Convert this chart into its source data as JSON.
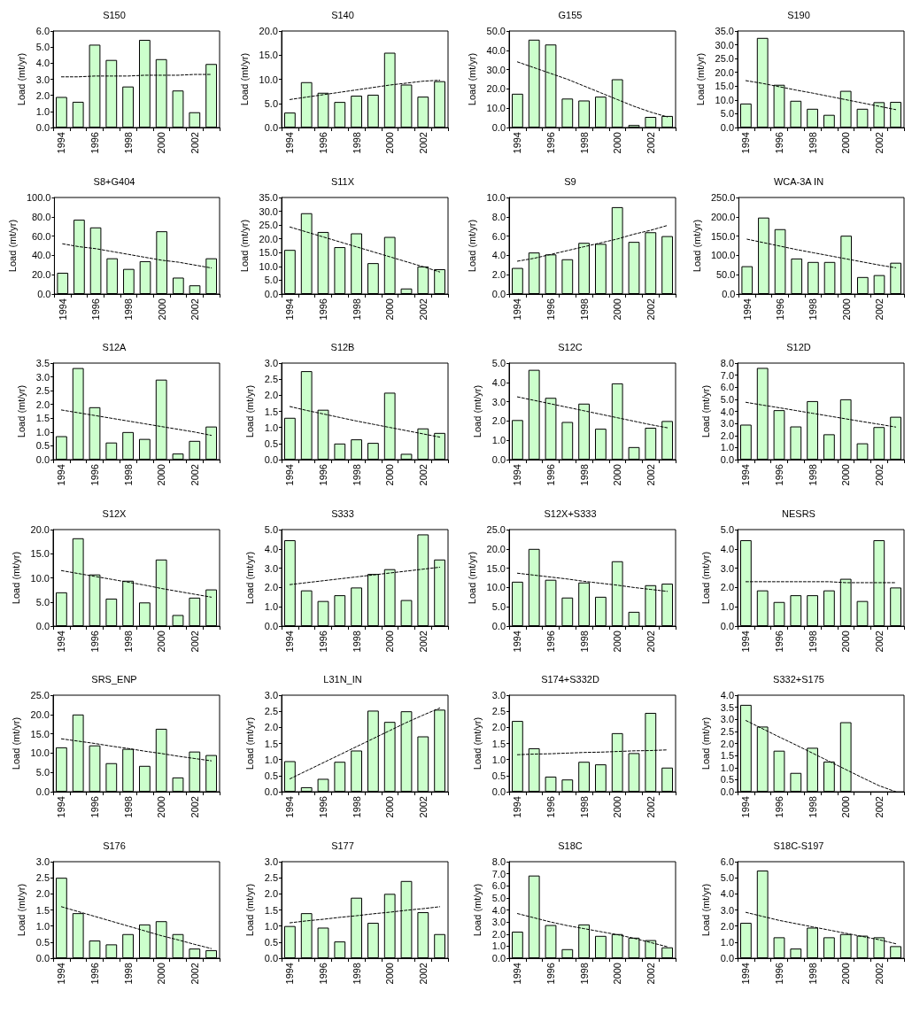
{
  "chart_data": [
    {
      "type": "bar",
      "title": "S150",
      "ylabel": "Load (mt/yr)",
      "categories": [
        "1994",
        null,
        "1996",
        null,
        "1998",
        null,
        "2000",
        null,
        "2002",
        null
      ],
      "ylim": [
        0,
        6
      ],
      "yticks": [
        {
          "value": 0,
          "label": "0.0"
        },
        {
          "value": 1,
          "label": "1.0"
        },
        {
          "value": 2,
          "label": "2.0"
        },
        {
          "value": 3,
          "label": "3.0"
        },
        {
          "value": 4,
          "label": "4.0"
        },
        {
          "value": 5,
          "label": "5.0"
        },
        {
          "value": 6,
          "label": "6.0"
        }
      ],
      "series": [
        {
          "color": "#ccffcc",
          "values": [
            1.9,
            1.6,
            5.15,
            4.2,
            2.55,
            5.45,
            4.25,
            2.3,
            0.95,
            3.95
          ]
        },
        {
          "type": "line",
          "color": "#000000",
          "line_style": "dashed",
          "marker": "none",
          "values": [
            3.15,
            3.15,
            3.2,
            3.2,
            3.2,
            3.25,
            3.25,
            3.25,
            3.3,
            3.3
          ]
        }
      ]
    },
    {
      "type": "bar",
      "title": "S140",
      "ylabel": "Load (mt/yr)",
      "categories": [
        "1994",
        null,
        "1996",
        null,
        "1998",
        null,
        "2000",
        null,
        "2002",
        null
      ],
      "ylim": [
        0,
        20
      ],
      "yticks": [
        {
          "value": 0,
          "label": "0.0"
        },
        {
          "value": 5,
          "label": "5.0"
        },
        {
          "value": 10,
          "label": "10.0"
        },
        {
          "value": 15,
          "label": "15.0"
        },
        {
          "value": 20,
          "label": "20.0"
        }
      ],
      "series": [
        {
          "color": "#ccffcc",
          "values": [
            3.1,
            9.4,
            7.2,
            5.3,
            6.6,
            6.8,
            15.5,
            8.9,
            6.4,
            9.6
          ]
        },
        {
          "type": "line",
          "color": "#000000",
          "line_style": "dashed",
          "marker": "none",
          "values": [
            5.8,
            6.3,
            6.8,
            7.3,
            7.8,
            8.3,
            8.8,
            9.2,
            9.6,
            9.8
          ]
        }
      ]
    },
    {
      "type": "bar",
      "title": "G155",
      "ylabel": "Load (mt/yr)",
      "categories": [
        "1994",
        null,
        "1996",
        null,
        "1998",
        null,
        "2000",
        null,
        "2002",
        null
      ],
      "ylim": [
        0,
        50
      ],
      "yticks": [
        {
          "value": 0,
          "label": "0.0"
        },
        {
          "value": 10,
          "label": "10.0"
        },
        {
          "value": 20,
          "label": "20.0"
        },
        {
          "value": 30,
          "label": "30.0"
        },
        {
          "value": 40,
          "label": "40.0"
        },
        {
          "value": 50,
          "label": "50.0"
        }
      ],
      "series": [
        {
          "color": "#ccffcc",
          "values": [
            17.5,
            45.5,
            43,
            15,
            14,
            16,
            25,
            1.3,
            5.5,
            6
          ]
        },
        {
          "type": "line",
          "color": "#000000",
          "line_style": "dashed",
          "marker": "none",
          "values": [
            34,
            31,
            28,
            25,
            21.5,
            18,
            14.5,
            11,
            8,
            5.5
          ]
        }
      ]
    },
    {
      "type": "bar",
      "title": "S190",
      "ylabel": "Load (mt/yr)",
      "categories": [
        "1994",
        null,
        "1996",
        null,
        "1998",
        null,
        "2000",
        null,
        "2002",
        null
      ],
      "ylim": [
        0,
        35
      ],
      "yticks": [
        {
          "value": 0,
          "label": "0.0"
        },
        {
          "value": 5,
          "label": "5.0"
        },
        {
          "value": 10,
          "label": "10.0"
        },
        {
          "value": 15,
          "label": "15.0"
        },
        {
          "value": 20,
          "label": "20.0"
        },
        {
          "value": 25,
          "label": "25.0"
        },
        {
          "value": 30,
          "label": "30.0"
        },
        {
          "value": 35,
          "label": "35.0"
        }
      ],
      "series": [
        {
          "color": "#ccffcc",
          "values": [
            8.7,
            32.5,
            15.5,
            9.7,
            6.8,
            4.6,
            13.3,
            6.8,
            9.2,
            9.3
          ]
        },
        {
          "type": "line",
          "color": "#000000",
          "line_style": "dashed",
          "marker": "none",
          "values": [
            17,
            16,
            14.8,
            13.6,
            12.5,
            11.3,
            10.1,
            8.9,
            7.7,
            6.5
          ]
        }
      ]
    },
    {
      "type": "bar",
      "title": "S8+G404",
      "ylabel": "Load (mt/yr)",
      "categories": [
        "1994",
        null,
        "1996",
        null,
        "1998",
        null,
        "2000",
        null,
        "2002",
        null
      ],
      "ylim": [
        0,
        100
      ],
      "yticks": [
        {
          "value": 0,
          "label": "0.0"
        },
        {
          "value": 20,
          "label": "20.0"
        },
        {
          "value": 40,
          "label": "40.0"
        },
        {
          "value": 60,
          "label": "60.0"
        },
        {
          "value": 80,
          "label": "80.0"
        },
        {
          "value": 100,
          "label": "100.0"
        }
      ],
      "series": [
        {
          "color": "#ccffcc",
          "values": [
            22,
            77,
            69,
            37,
            26,
            34,
            65,
            17,
            9,
            37
          ]
        },
        {
          "type": "line",
          "color": "#000000",
          "line_style": "dashed",
          "marker": "none",
          "values": [
            52,
            49,
            47,
            44,
            41,
            38,
            35,
            33,
            30,
            27
          ]
        }
      ]
    },
    {
      "type": "bar",
      "title": "S11X",
      "ylabel": "Load (mt/yr)",
      "categories": [
        "1994",
        null,
        "1996",
        null,
        "1998",
        null,
        "2000",
        null,
        "2002",
        null
      ],
      "ylim": [
        0,
        35
      ],
      "yticks": [
        {
          "value": 0,
          "label": "0.0"
        },
        {
          "value": 5,
          "label": "5.0"
        },
        {
          "value": 10,
          "label": "10.0"
        },
        {
          "value": 15,
          "label": "15.0"
        },
        {
          "value": 20,
          "label": "20.0"
        },
        {
          "value": 25,
          "label": "25.0"
        },
        {
          "value": 30,
          "label": "30.0"
        },
        {
          "value": 35,
          "label": "35.0"
        }
      ],
      "series": [
        {
          "color": "#ccffcc",
          "values": [
            16,
            29.3,
            22.5,
            17,
            22,
            11.2,
            20.7,
            2,
            10,
            9
          ]
        },
        {
          "type": "line",
          "color": "#000000",
          "line_style": "dashed",
          "marker": "none",
          "values": [
            24.3,
            22.5,
            20.7,
            18.9,
            17.1,
            15.3,
            13.5,
            11.7,
            9.9,
            8
          ]
        }
      ]
    },
    {
      "type": "bar",
      "title": "S9",
      "ylabel": "Load (mt/yr)",
      "categories": [
        "1994",
        null,
        "1996",
        null,
        "1998",
        null,
        "2000",
        null,
        "2002",
        null
      ],
      "ylim": [
        0,
        10
      ],
      "yticks": [
        {
          "value": 0,
          "label": "0.0"
        },
        {
          "value": 2,
          "label": "2.0"
        },
        {
          "value": 4,
          "label": "4.0"
        },
        {
          "value": 6,
          "label": "6.0"
        },
        {
          "value": 8,
          "label": "8.0"
        },
        {
          "value": 10,
          "label": "10.0"
        }
      ],
      "series": [
        {
          "color": "#ccffcc",
          "values": [
            2.7,
            4.3,
            4.1,
            3.6,
            5.3,
            5.2,
            9,
            5.4,
            6.4,
            6
          ]
        },
        {
          "type": "line",
          "color": "#000000",
          "line_style": "dashed",
          "marker": "none",
          "values": [
            3.4,
            3.7,
            4.1,
            4.5,
            4.9,
            5.3,
            5.7,
            6.2,
            6.6,
            7.1
          ]
        }
      ]
    },
    {
      "type": "bar",
      "title": "WCA-3A IN",
      "ylabel": "Load (mt/yr)",
      "categories": [
        "1994",
        null,
        "1996",
        null,
        "1998",
        null,
        "2000",
        null,
        "2002",
        null
      ],
      "ylim": [
        0,
        250
      ],
      "yticks": [
        {
          "value": 0,
          "label": "0.0"
        },
        {
          "value": 50,
          "label": "50.0"
        },
        {
          "value": 100,
          "label": "100.0"
        },
        {
          "value": 150,
          "label": "150.0"
        },
        {
          "value": 200,
          "label": "200.0"
        },
        {
          "value": 250,
          "label": "250.0"
        }
      ],
      "series": [
        {
          "color": "#ccffcc",
          "values": [
            72,
            198,
            168,
            92,
            83,
            83,
            151,
            44,
            49,
            81
          ]
        },
        {
          "type": "line",
          "color": "#000000",
          "line_style": "dashed",
          "marker": "none",
          "values": [
            142,
            133,
            124,
            115,
            107,
            99,
            91,
            83,
            75,
            68
          ]
        }
      ]
    },
    {
      "type": "bar",
      "title": "S12A",
      "ylabel": "Load (mt/yr)",
      "categories": [
        "1994",
        null,
        "1996",
        null,
        "1998",
        null,
        "2000",
        null,
        "2002",
        null
      ],
      "ylim": [
        0,
        3.5
      ],
      "yticks": [
        {
          "value": 0,
          "label": "0.0"
        },
        0.5,
        {
          "value": 1,
          "label": "1.0"
        },
        1.5,
        {
          "value": 2,
          "label": "2.0"
        },
        2.5,
        {
          "value": 3,
          "label": "3.0"
        },
        3.5
      ],
      "series": [
        {
          "color": "#ccffcc",
          "values": [
            0.85,
            3.32,
            1.9,
            0.62,
            1,
            0.75,
            2.9,
            0.22,
            0.68,
            1.2
          ]
        },
        {
          "type": "line",
          "color": "#000000",
          "line_style": "dashed",
          "marker": "none",
          "values": [
            1.8,
            1.7,
            1.6,
            1.5,
            1.4,
            1.3,
            1.2,
            1.1,
            1,
            0.88
          ]
        }
      ]
    },
    {
      "type": "bar",
      "title": "S12B",
      "ylabel": "Load (mt/yr)",
      "categories": [
        "1994",
        null,
        "1996",
        null,
        "1998",
        null,
        "2000",
        null,
        "2002",
        null
      ],
      "ylim": [
        0,
        3
      ],
      "yticks": [
        {
          "value": 0,
          "label": "0.0"
        },
        0.5,
        {
          "value": 1,
          "label": "1.0"
        },
        1.5,
        {
          "value": 2,
          "label": "2.0"
        },
        2.5,
        {
          "value": 3,
          "label": "3.0"
        }
      ],
      "series": [
        {
          "color": "#ccffcc",
          "values": [
            1.3,
            2.75,
            1.55,
            0.5,
            0.63,
            0.52,
            2.08,
            0.18,
            0.97,
            0.83
          ]
        },
        {
          "type": "line",
          "color": "#000000",
          "line_style": "dashed",
          "marker": "none",
          "values": [
            1.65,
            1.53,
            1.42,
            1.31,
            1.2,
            1.1,
            1,
            0.9,
            0.8,
            0.7
          ]
        }
      ]
    },
    {
      "type": "bar",
      "title": "S12C",
      "ylabel": "Load (mt/yr)",
      "categories": [
        "1994",
        null,
        "1996",
        null,
        "1998",
        null,
        "2000",
        null,
        "2002",
        null
      ],
      "ylim": [
        0,
        5
      ],
      "yticks": [
        {
          "value": 0,
          "label": "0.0"
        },
        {
          "value": 1,
          "label": "1.0"
        },
        {
          "value": 2,
          "label": "2.0"
        },
        {
          "value": 3,
          "label": "3.0"
        },
        {
          "value": 4,
          "label": "4.0"
        },
        {
          "value": 5,
          "label": "5.0"
        }
      ],
      "series": [
        {
          "color": "#ccffcc",
          "values": [
            2.05,
            4.65,
            3.2,
            1.95,
            2.9,
            1.6,
            3.95,
            0.65,
            1.65,
            2
          ]
        },
        {
          "type": "line",
          "color": "#000000",
          "line_style": "dashed",
          "marker": "none",
          "values": [
            3.25,
            3.07,
            2.89,
            2.71,
            2.53,
            2.35,
            2.17,
            1.99,
            1.81,
            1.65
          ]
        }
      ]
    },
    {
      "type": "bar",
      "title": "S12D",
      "ylabel": "Load (mt/yr)",
      "categories": [
        "1994",
        null,
        "1996",
        null,
        "1998",
        null,
        "2000",
        null,
        "2002",
        null
      ],
      "ylim": [
        0,
        8
      ],
      "yticks": [
        {
          "value": 0,
          "label": "0.0"
        },
        {
          "value": 1,
          "label": "1.0"
        },
        {
          "value": 2,
          "label": "2.0"
        },
        {
          "value": 3,
          "label": "3.0"
        },
        {
          "value": 4,
          "label": "4.0"
        },
        {
          "value": 5,
          "label": "5.0"
        },
        {
          "value": 6,
          "label": "6.0"
        },
        {
          "value": 7,
          "label": "7.0"
        },
        {
          "value": 8,
          "label": "8.0"
        }
      ],
      "series": [
        {
          "color": "#ccffcc",
          "values": [
            2.9,
            7.6,
            4.1,
            2.75,
            4.85,
            2.1,
            5,
            1.35,
            2.7,
            3.55
          ]
        },
        {
          "type": "line",
          "color": "#000000",
          "line_style": "dashed",
          "marker": "none",
          "values": [
            4.75,
            4.52,
            4.3,
            4.07,
            3.84,
            3.61,
            3.38,
            3.15,
            2.93,
            2.7
          ]
        }
      ]
    },
    {
      "type": "bar",
      "title": "S12X",
      "ylabel": "Load (mt/yr)",
      "categories": [
        "1994",
        null,
        "1996",
        null,
        "1998",
        null,
        "2000",
        null,
        "2002",
        null
      ],
      "ylim": [
        0,
        20
      ],
      "yticks": [
        {
          "value": 0,
          "label": "0.0"
        },
        {
          "value": 5,
          "label": "5.0"
        },
        {
          "value": 10,
          "label": "10.0"
        },
        {
          "value": 15,
          "label": "15.0"
        },
        {
          "value": 20,
          "label": "20.0"
        }
      ],
      "series": [
        {
          "color": "#ccffcc",
          "values": [
            7,
            18.2,
            10.7,
            5.7,
            9.4,
            4.9,
            13.8,
            2.3,
            5.9,
            7.6
          ]
        },
        {
          "type": "line",
          "color": "#000000",
          "line_style": "dashed",
          "marker": "none",
          "values": [
            11.5,
            10.9,
            10.3,
            9.7,
            9.1,
            8.5,
            7.8,
            7.2,
            6.6,
            6
          ]
        }
      ]
    },
    {
      "type": "bar",
      "title": "S333",
      "ylabel": "Load (mt/yr)",
      "categories": [
        "1994",
        null,
        "1996",
        null,
        "1998",
        null,
        "2000",
        null,
        "2002",
        null
      ],
      "ylim": [
        0,
        5
      ],
      "yticks": [
        {
          "value": 0,
          "label": "0.0"
        },
        {
          "value": 1,
          "label": "1.0"
        },
        {
          "value": 2,
          "label": "2.0"
        },
        {
          "value": 3,
          "label": "3.0"
        },
        {
          "value": 4,
          "label": "4.0"
        },
        {
          "value": 5,
          "label": "5.0"
        }
      ],
      "series": [
        {
          "color": "#ccffcc",
          "values": [
            4.45,
            1.85,
            1.3,
            1.6,
            2,
            2.7,
            2.95,
            1.35,
            4.75,
            3.45
          ]
        },
        {
          "type": "line",
          "color": "#000000",
          "line_style": "dashed",
          "marker": "none",
          "values": [
            2.15,
            2.25,
            2.35,
            2.45,
            2.55,
            2.65,
            2.75,
            2.85,
            2.95,
            3.05
          ]
        }
      ]
    },
    {
      "type": "bar",
      "title": "S12X+S333",
      "ylabel": "Load (mt/yr)",
      "categories": [
        "1994",
        null,
        "1996",
        null,
        "1998",
        null,
        "2000",
        null,
        "2002",
        null
      ],
      "ylim": [
        0,
        25
      ],
      "yticks": [
        {
          "value": 0,
          "label": "0.0"
        },
        {
          "value": 5,
          "label": "5.0"
        },
        {
          "value": 10,
          "label": "10.0"
        },
        {
          "value": 15,
          "label": "15.0"
        },
        {
          "value": 20,
          "label": "20.0"
        },
        {
          "value": 25,
          "label": "25.0"
        }
      ],
      "series": [
        {
          "color": "#ccffcc",
          "values": [
            11.5,
            20,
            12,
            7.4,
            11.3,
            7.6,
            16.8,
            3.7,
            10.6,
            11
          ]
        },
        {
          "type": "line",
          "color": "#000000",
          "line_style": "dashed",
          "marker": "none",
          "values": [
            13.7,
            13.2,
            12.7,
            12.2,
            11.6,
            11.1,
            10.6,
            10,
            9.5,
            9
          ]
        }
      ]
    },
    {
      "type": "bar",
      "title": "NESRS",
      "ylabel": "Load (mt/yr)",
      "categories": [
        "1994",
        null,
        "1996",
        null,
        "1998",
        null,
        "2000",
        null,
        "2002",
        null
      ],
      "ylim": [
        0,
        5
      ],
      "yticks": [
        {
          "value": 0,
          "label": "0.0"
        },
        {
          "value": 1,
          "label": "1.0"
        },
        {
          "value": 2,
          "label": "2.0"
        },
        {
          "value": 3,
          "label": "3.0"
        },
        {
          "value": 4,
          "label": "4.0"
        },
        {
          "value": 5,
          "label": "5.0"
        }
      ],
      "series": [
        {
          "color": "#ccffcc",
          "values": [
            4.45,
            1.85,
            1.25,
            1.6,
            1.6,
            1.85,
            2.45,
            1.3,
            4.45,
            2
          ]
        },
        {
          "type": "line",
          "color": "#000000",
          "line_style": "dashed",
          "marker": "none",
          "values": [
            2.3,
            2.3,
            2.3,
            2.3,
            2.3,
            2.3,
            2.25,
            2.25,
            2.25,
            2.25
          ]
        }
      ]
    },
    {
      "type": "bar",
      "title": "SRS_ENP",
      "ylabel": "Load (mt/yr)",
      "categories": [
        "1994",
        null,
        "1996",
        null,
        "1998",
        null,
        "2000",
        null,
        "2002",
        null
      ],
      "ylim": [
        0,
        25
      ],
      "yticks": [
        {
          "value": 0,
          "label": "0.0"
        },
        {
          "value": 5,
          "label": "5.0"
        },
        {
          "value": 10,
          "label": "10.0"
        },
        {
          "value": 15,
          "label": "15.0"
        },
        {
          "value": 20,
          "label": "20.0"
        },
        {
          "value": 25,
          "label": "25.0"
        }
      ],
      "series": [
        {
          "color": "#ccffcc",
          "values": [
            11.5,
            20,
            12,
            7.4,
            11.1,
            6.7,
            16.3,
            3.7,
            10.4,
            9.5
          ]
        },
        {
          "type": "line",
          "color": "#000000",
          "line_style": "dashed",
          "marker": "none",
          "values": [
            13.7,
            13.1,
            12.5,
            11.8,
            11.2,
            10.5,
            9.9,
            9.2,
            8.6,
            8
          ]
        }
      ]
    },
    {
      "type": "bar",
      "title": "L31N_IN",
      "ylabel": "Load (mt/yr)",
      "categories": [
        "1994",
        null,
        "1996",
        null,
        "1998",
        null,
        "2000",
        null,
        "2002",
        null
      ],
      "ylim": [
        0,
        3
      ],
      "yticks": [
        {
          "value": 0,
          "label": "0.0"
        },
        0.5,
        {
          "value": 1,
          "label": "1.0"
        },
        1.5,
        {
          "value": 2,
          "label": "2.0"
        },
        2.5,
        {
          "value": 3,
          "label": "3.0"
        }
      ],
      "series": [
        {
          "color": "#ccffcc",
          "values": [
            0.95,
            0.14,
            0.4,
            0.93,
            1.28,
            2.52,
            2.17,
            2.5,
            1.72,
            2.55
          ]
        },
        {
          "type": "line",
          "color": "#000000",
          "line_style": "dashed",
          "marker": "none",
          "values": [
            0.4,
            0.65,
            0.9,
            1.15,
            1.4,
            1.65,
            1.9,
            2.15,
            2.38,
            2.6
          ]
        }
      ]
    },
    {
      "type": "bar",
      "title": "S174+S332D",
      "ylabel": "Load (mt/yr)",
      "categories": [
        "1994",
        null,
        "1996",
        null,
        "1998",
        null,
        "2000",
        null,
        "2002",
        null
      ],
      "ylim": [
        0,
        3
      ],
      "yticks": [
        {
          "value": 0,
          "label": "0.0"
        },
        0.5,
        {
          "value": 1,
          "label": "1.0"
        },
        1.5,
        {
          "value": 2,
          "label": "2.0"
        },
        2.5,
        {
          "value": 3,
          "label": "3.0"
        }
      ],
      "series": [
        {
          "color": "#ccffcc",
          "values": [
            2.2,
            1.35,
            0.47,
            0.38,
            0.93,
            0.85,
            1.82,
            1.2,
            2.45,
            0.75
          ]
        },
        {
          "type": "line",
          "color": "#000000",
          "line_style": "dashed",
          "marker": "none",
          "values": [
            1.15,
            1.17,
            1.18,
            1.2,
            1.22,
            1.23,
            1.25,
            1.27,
            1.28,
            1.3
          ]
        }
      ]
    },
    {
      "type": "bar",
      "title": "S332+S175",
      "ylabel": "Load (mt/yr)",
      "categories": [
        "1994",
        null,
        "1996",
        null,
        "1998",
        null,
        "2000",
        null,
        "2002",
        null
      ],
      "ylim": [
        0,
        4
      ],
      "yticks": [
        {
          "value": 0,
          "label": "0.0"
        },
        0.5,
        {
          "value": 1,
          "label": "1.0"
        },
        1.5,
        {
          "value": 2,
          "label": "2.0"
        },
        2.5,
        {
          "value": 3,
          "label": "3.0"
        },
        3.5,
        {
          "value": 4,
          "label": "4.0"
        }
      ],
      "series": [
        {
          "color": "#ccffcc",
          "values": [
            3.6,
            2.7,
            1.7,
            0.78,
            1.82,
            1.25,
            2.88,
            null,
            null,
            null
          ]
        },
        {
          "type": "line",
          "color": "#000000",
          "line_style": "dashed",
          "marker": "none",
          "values": [
            2.95,
            2.61,
            2.27,
            1.94,
            1.6,
            1.26,
            0.92,
            0.58,
            0.25,
            0
          ]
        }
      ]
    },
    {
      "type": "bar",
      "title": "S176",
      "ylabel": "Load (mt/yr)",
      "categories": [
        "1994",
        null,
        "1996",
        null,
        "1998",
        null,
        "2000",
        null,
        "2002",
        null
      ],
      "ylim": [
        0,
        3
      ],
      "yticks": [
        {
          "value": 0,
          "label": "0.0"
        },
        0.5,
        {
          "value": 1,
          "label": "1.0"
        },
        1.5,
        {
          "value": 2,
          "label": "2.0"
        },
        2.5,
        {
          "value": 3,
          "label": "3.0"
        }
      ],
      "series": [
        {
          "color": "#ccffcc",
          "values": [
            2.5,
            1.4,
            0.55,
            0.43,
            0.75,
            1.05,
            1.15,
            0.75,
            0.3,
            0.25
          ]
        },
        {
          "type": "line",
          "color": "#000000",
          "line_style": "dashed",
          "marker": "none",
          "values": [
            1.6,
            1.45,
            1.3,
            1.15,
            1,
            0.85,
            0.7,
            0.57,
            0.43,
            0.3
          ]
        }
      ]
    },
    {
      "type": "bar",
      "title": "S177",
      "ylabel": "Load (mt/yr)",
      "categories": [
        "1994",
        null,
        "1996",
        null,
        "1998",
        null,
        "2000",
        null,
        "2002",
        null
      ],
      "ylim": [
        0,
        3
      ],
      "yticks": [
        {
          "value": 0,
          "label": "0.0"
        },
        0.5,
        {
          "value": 1,
          "label": "1.0"
        },
        1.5,
        {
          "value": 2,
          "label": "2.0"
        },
        2.5,
        {
          "value": 3,
          "label": "3.0"
        }
      ],
      "series": [
        {
          "color": "#ccffcc",
          "values": [
            1,
            1.4,
            0.95,
            0.52,
            1.88,
            1.1,
            2,
            2.4,
            1.43,
            0.75
          ]
        },
        {
          "type": "line",
          "color": "#000000",
          "line_style": "dashed",
          "marker": "none",
          "values": [
            1.1,
            1.16,
            1.21,
            1.27,
            1.32,
            1.38,
            1.43,
            1.49,
            1.54,
            1.6
          ]
        }
      ]
    },
    {
      "type": "bar",
      "title": "S18C",
      "ylabel": "Load (mt/yr)",
      "categories": [
        "1994",
        null,
        "1996",
        null,
        "1998",
        null,
        "2000",
        null,
        "2002",
        null
      ],
      "ylim": [
        0,
        8
      ],
      "yticks": [
        {
          "value": 0,
          "label": "0.0"
        },
        {
          "value": 1,
          "label": "1.0"
        },
        {
          "value": 2,
          "label": "2.0"
        },
        {
          "value": 3,
          "label": "3.0"
        },
        {
          "value": 4,
          "label": "4.0"
        },
        {
          "value": 5,
          "label": "5.0"
        },
        {
          "value": 6,
          "label": "6.0"
        },
        {
          "value": 7,
          "label": "7.0"
        },
        {
          "value": 8,
          "label": "8.0"
        }
      ],
      "series": [
        {
          "color": "#ccffcc",
          "values": [
            2.2,
            6.85,
            2.75,
            0.75,
            2.8,
            1.85,
            2,
            1.7,
            1.5,
            0.9
          ]
        },
        {
          "type": "line",
          "color": "#000000",
          "line_style": "dashed",
          "marker": "none",
          "values": [
            3.7,
            3.35,
            3,
            2.7,
            2.45,
            2.2,
            1.95,
            1.65,
            1.3,
            0.95
          ]
        }
      ]
    },
    {
      "type": "bar",
      "title": "S18C-S197",
      "ylabel": "Load (mt/yr)",
      "categories": [
        "1994",
        null,
        "1996",
        null,
        "1998",
        null,
        "2000",
        null,
        "2002",
        null
      ],
      "ylim": [
        0,
        6
      ],
      "yticks": [
        {
          "value": 0,
          "label": "0.0"
        },
        {
          "value": 1,
          "label": "1.0"
        },
        {
          "value": 2,
          "label": "2.0"
        },
        {
          "value": 3,
          "label": "3.0"
        },
        {
          "value": 4,
          "label": "4.0"
        },
        {
          "value": 5,
          "label": "5.0"
        },
        {
          "value": 6,
          "label": "6.0"
        }
      ],
      "series": [
        {
          "color": "#ccffcc",
          "values": [
            2.2,
            5.45,
            1.3,
            0.6,
            1.9,
            1.3,
            1.5,
            1.4,
            1.3,
            0.75
          ]
        },
        {
          "type": "line",
          "color": "#000000",
          "line_style": "dashed",
          "marker": "none",
          "values": [
            2.85,
            2.6,
            2.35,
            2.15,
            1.95,
            1.75,
            1.55,
            1.35,
            1.15,
            0.9
          ]
        }
      ]
    }
  ]
}
